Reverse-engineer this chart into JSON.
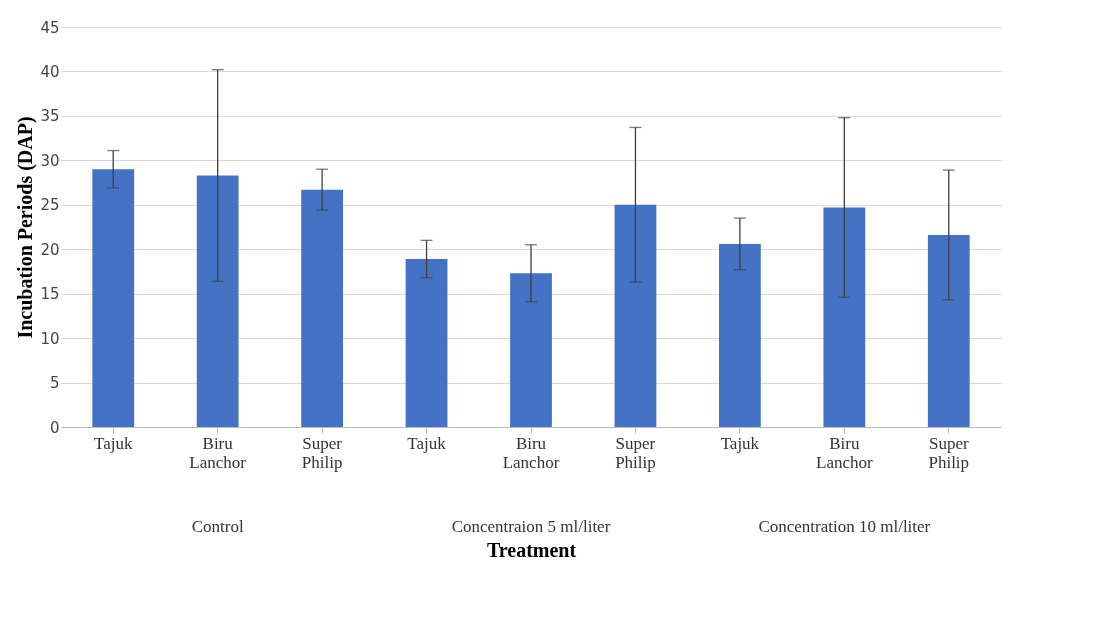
{
  "chart_data": {
    "type": "bar",
    "xlabel": "Treatment",
    "ylabel": "Incubation Periods (DAP)",
    "categories": [
      "Tajuk",
      "Biru Lanchor",
      "Super Philip",
      "Tajuk",
      "Biru Lanchor",
      "Super Philip",
      "Tajuk",
      "Biru Lanchor",
      "Super Philip"
    ],
    "values": [
      29.0,
      28.3,
      26.7,
      18.9,
      17.3,
      25.0,
      20.6,
      24.7,
      21.6
    ],
    "errors": [
      2.1,
      11.9,
      2.3,
      2.1,
      3.2,
      8.7,
      2.9,
      10.1,
      7.3
    ],
    "color": "#4472c4",
    "ylim": [
      0,
      45
    ],
    "yticks": [
      0,
      5,
      10,
      15,
      20,
      25,
      30,
      35,
      40,
      45
    ],
    "grid": "y",
    "annotations": [
      "Control",
      "Concentraion 5 ml/liter",
      "Concentration 10 ml/liter"
    ]
  }
}
